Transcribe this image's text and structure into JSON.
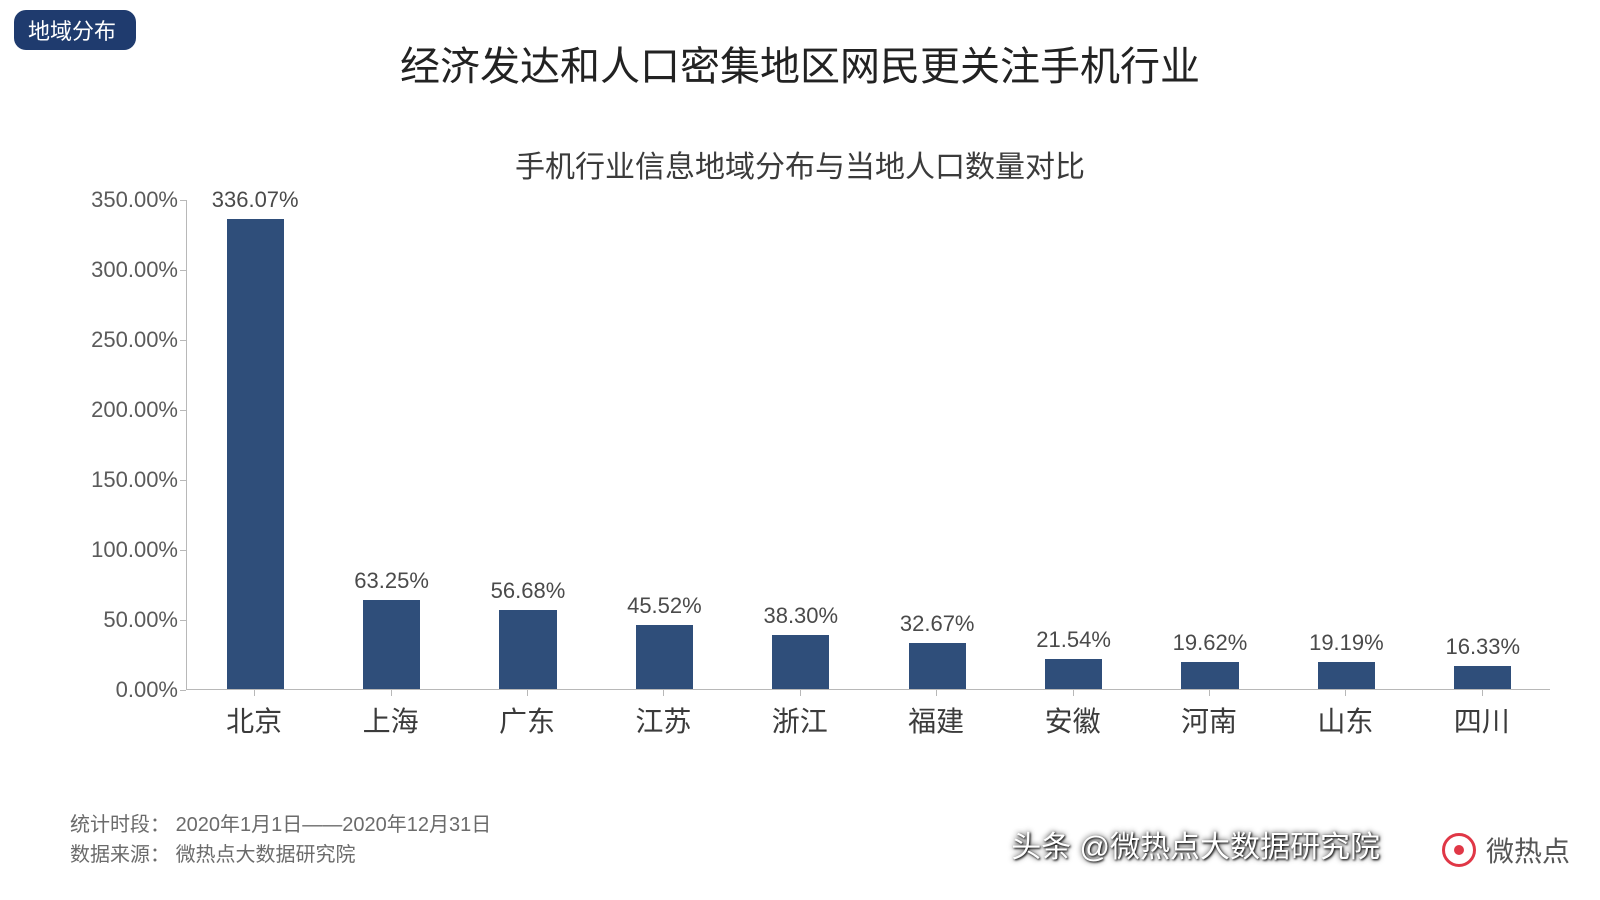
{
  "badge": "地域分布",
  "main_title": "经济发达和人口密集地区网民更关注手机行业",
  "sub_title": "手机行业信息地域分布与当地人口数量对比",
  "chart": {
    "type": "bar",
    "categories": [
      "北京",
      "上海",
      "广东",
      "江苏",
      "浙江",
      "福建",
      "安徽",
      "河南",
      "山东",
      "四川"
    ],
    "values": [
      336.07,
      63.25,
      56.68,
      45.52,
      38.3,
      32.67,
      21.54,
      19.62,
      19.19,
      16.33
    ],
    "value_labels": [
      "336.07%",
      "63.25%",
      "56.68%",
      "45.52%",
      "38.30%",
      "32.67%",
      "21.54%",
      "19.62%",
      "19.19%",
      "16.33%"
    ],
    "bar_color": "#2f4e7a",
    "ylim": [
      0,
      350
    ],
    "ytick_step": 50,
    "ytick_format_suffix": ".00%",
    "axis_color": "#b8b8b8",
    "label_color": "#4a4a4a",
    "tick_fontsize": 22,
    "cat_fontsize": 28,
    "bar_width_ratio": 0.42,
    "background_color": "#ffffff"
  },
  "footer": {
    "period_label": "统计时段：",
    "period_value": "2020年1月1日——2020年12月31日",
    "source_label": "数据来源：",
    "source_value": "微热点大数据研究院"
  },
  "watermark_text": "微热点",
  "attribution": "头条 @微热点大数据研究院"
}
